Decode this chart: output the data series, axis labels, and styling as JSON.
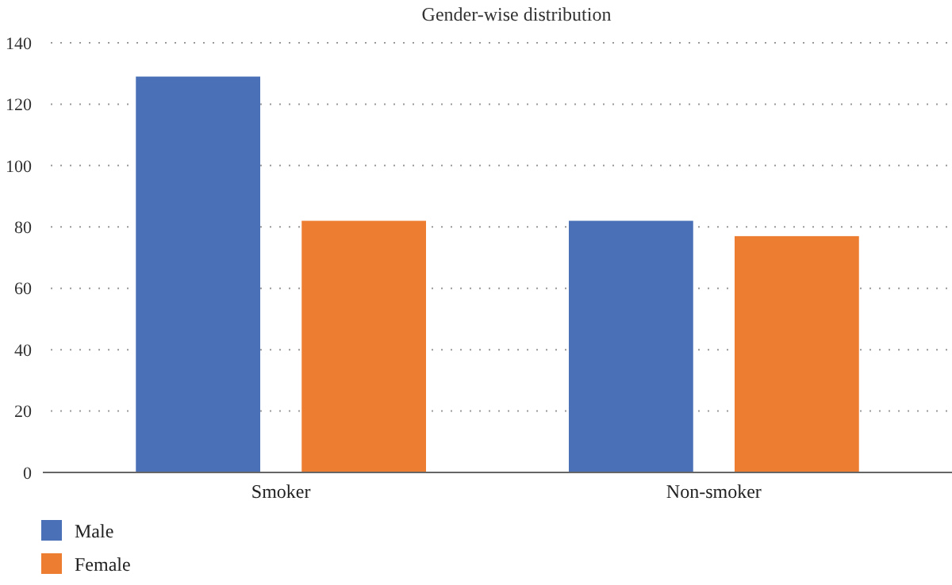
{
  "chart_data": {
    "type": "bar",
    "title": "Gender-wise distribution",
    "categories": [
      "Smoker",
      "Non-smoker"
    ],
    "series": [
      {
        "name": "Male",
        "color": "#4a71b8",
        "values": [
          129,
          82
        ]
      },
      {
        "name": "Female",
        "color": "#ed7d31",
        "values": [
          82,
          77
        ]
      }
    ],
    "ylim": [
      0,
      140
    ],
    "yticks": [
      0,
      20,
      40,
      60,
      80,
      100,
      120,
      140
    ],
    "grid": "y",
    "legend": "bottom left"
  }
}
